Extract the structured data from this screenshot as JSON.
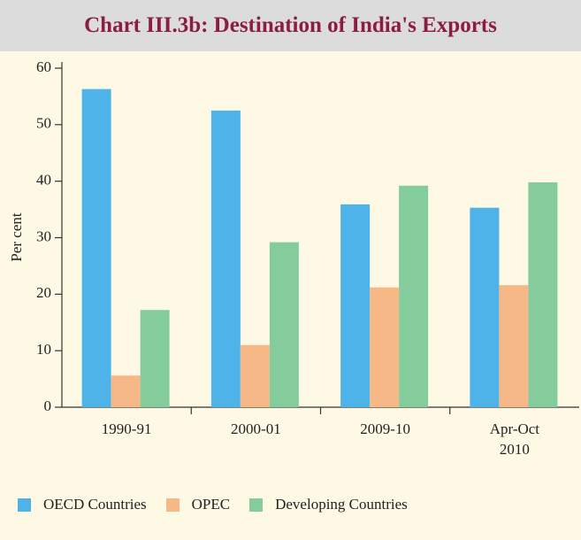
{
  "chart_data": {
    "type": "bar",
    "title": "Chart III.3b: Destination of India's Exports",
    "ylabel": "Per cent",
    "categories": [
      "1990-91",
      "2000-01",
      "2009-10",
      "Apr-Oct\n2010"
    ],
    "series": [
      {
        "name": "OECD Countries",
        "color": "#4eb3e8",
        "values": [
          56.3,
          52.5,
          35.9,
          35.3
        ]
      },
      {
        "name": "OPEC",
        "color": "#f7b887",
        "values": [
          5.6,
          11.0,
          21.2,
          21.6
        ]
      },
      {
        "name": "Developing Countries",
        "color": "#84cc9c",
        "values": [
          17.2,
          29.2,
          39.2,
          39.8
        ]
      }
    ],
    "ylim": [
      0,
      60
    ],
    "yticks": [
      0,
      10,
      20,
      30,
      40,
      50,
      60
    ]
  }
}
